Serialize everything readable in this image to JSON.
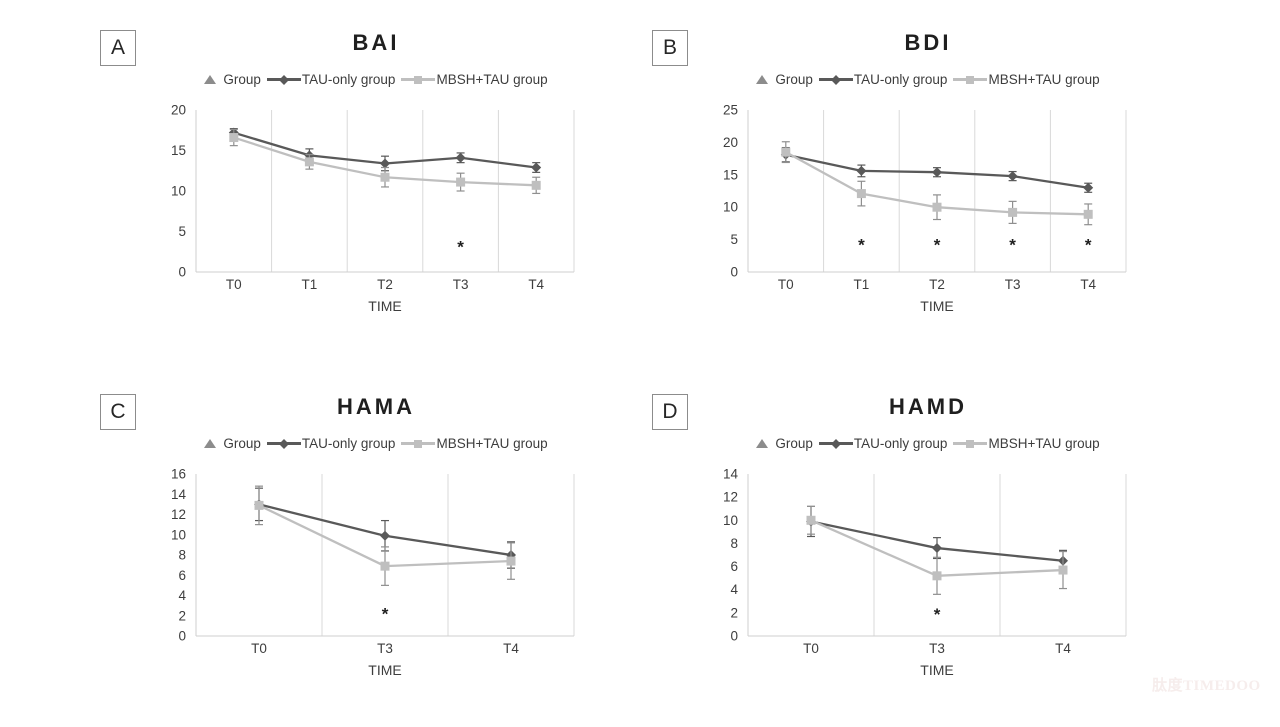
{
  "figure": {
    "watermark": "肽度TIMEDOO"
  },
  "legend": {
    "group_label": "Group",
    "tau_label": "TAU-only group",
    "mbsh_label": "MBSH+TAU group"
  },
  "colors": {
    "series_dark": "#595959",
    "series_light": "#bfbfbf",
    "error_dark": "#595959",
    "error_light": "#8f8f8f",
    "grid": "#d9d9d9",
    "axis": "#cfcfcf",
    "tick_text": "#3d3d3d",
    "title_text": "#1f1f1f",
    "asterisk": "#1f1f1f",
    "legend_triangle": "#8c8c8c",
    "watermark": "#f6edec"
  },
  "chart_data": [
    {
      "panel_label": "A",
      "type": "line",
      "title": "BAI",
      "xlabel": "TIME",
      "categories": [
        "T0",
        "T1",
        "T2",
        "T3",
        "T4"
      ],
      "ylim": [
        0,
        20
      ],
      "yticks": [
        0,
        5,
        10,
        15,
        20
      ],
      "grid": "vertical-only",
      "legend_position": "top",
      "series": [
        {
          "name": "TAU-only group",
          "marker": "diamond",
          "color": "#595959",
          "err_color": "#595959",
          "values": [
            17.2,
            14.4,
            13.4,
            14.1,
            12.9
          ],
          "errors": [
            0.5,
            0.8,
            0.9,
            0.6,
            0.6
          ]
        },
        {
          "name": "MBSH+TAU group",
          "marker": "square",
          "color": "#bfbfbf",
          "err_color": "#8f8f8f",
          "values": [
            16.6,
            13.6,
            11.7,
            11.1,
            10.7
          ],
          "errors": [
            1.0,
            0.9,
            1.2,
            1.1,
            1.0
          ]
        }
      ],
      "annotations": [
        {
          "category": "T3",
          "value": 3.3,
          "text": "*"
        }
      ]
    },
    {
      "panel_label": "B",
      "type": "line",
      "title": "BDI",
      "xlabel": "TIME",
      "categories": [
        "T0",
        "T1",
        "T2",
        "T3",
        "T4"
      ],
      "ylim": [
        0,
        25
      ],
      "yticks": [
        0,
        5,
        10,
        15,
        20,
        25
      ],
      "grid": "vertical-only",
      "legend_position": "top",
      "series": [
        {
          "name": "TAU-only group",
          "marker": "diamond",
          "color": "#595959",
          "err_color": "#595959",
          "values": [
            18.1,
            15.6,
            15.4,
            14.8,
            13.0
          ],
          "errors": [
            1.1,
            0.9,
            0.7,
            0.7,
            0.7
          ]
        },
        {
          "name": "MBSH+TAU group",
          "marker": "square",
          "color": "#bfbfbf",
          "err_color": "#8f8f8f",
          "values": [
            18.5,
            12.1,
            10.0,
            9.2,
            8.9
          ],
          "errors": [
            1.6,
            1.9,
            1.9,
            1.7,
            1.6
          ]
        }
      ],
      "annotations": [
        {
          "category": "T1",
          "value": 4.4,
          "text": "*"
        },
        {
          "category": "T2",
          "value": 4.4,
          "text": "*"
        },
        {
          "category": "T3",
          "value": 4.4,
          "text": "*"
        },
        {
          "category": "T4",
          "value": 4.4,
          "text": "*"
        }
      ]
    },
    {
      "panel_label": "C",
      "type": "line",
      "title": "HAMA",
      "xlabel": "TIME",
      "categories": [
        "T0",
        "T3",
        "T4"
      ],
      "ylim": [
        0,
        16
      ],
      "yticks": [
        0,
        2,
        4,
        6,
        8,
        10,
        12,
        14,
        16
      ],
      "grid": "vertical-only",
      "legend_position": "top",
      "series": [
        {
          "name": "TAU-only group",
          "marker": "diamond",
          "color": "#595959",
          "err_color": "#595959",
          "values": [
            13.0,
            9.9,
            8.0
          ],
          "errors": [
            1.6,
            1.5,
            1.3
          ]
        },
        {
          "name": "MBSH+TAU group",
          "marker": "square",
          "color": "#bfbfbf",
          "err_color": "#8f8f8f",
          "values": [
            12.9,
            6.9,
            7.4
          ],
          "errors": [
            1.9,
            1.9,
            1.8
          ]
        }
      ],
      "annotations": [
        {
          "category": "T3",
          "value": 2.3,
          "text": "*"
        }
      ]
    },
    {
      "panel_label": "D",
      "type": "line",
      "title": "HAMD",
      "xlabel": "TIME",
      "categories": [
        "T0",
        "T3",
        "T4"
      ],
      "ylim": [
        0,
        14
      ],
      "yticks": [
        0,
        2,
        4,
        6,
        8,
        10,
        12,
        14
      ],
      "grid": "vertical-only",
      "legend_position": "top",
      "series": [
        {
          "name": "TAU-only group",
          "marker": "diamond",
          "color": "#595959",
          "err_color": "#595959",
          "values": [
            9.9,
            7.6,
            6.5
          ],
          "errors": [
            1.3,
            0.9,
            0.9
          ]
        },
        {
          "name": "MBSH+TAU group",
          "marker": "square",
          "color": "#bfbfbf",
          "err_color": "#8f8f8f",
          "values": [
            10.0,
            5.2,
            5.7
          ],
          "errors": [
            1.2,
            1.6,
            1.6
          ]
        }
      ],
      "annotations": [
        {
          "category": "T3",
          "value": 2.0,
          "text": "*"
        }
      ]
    }
  ]
}
